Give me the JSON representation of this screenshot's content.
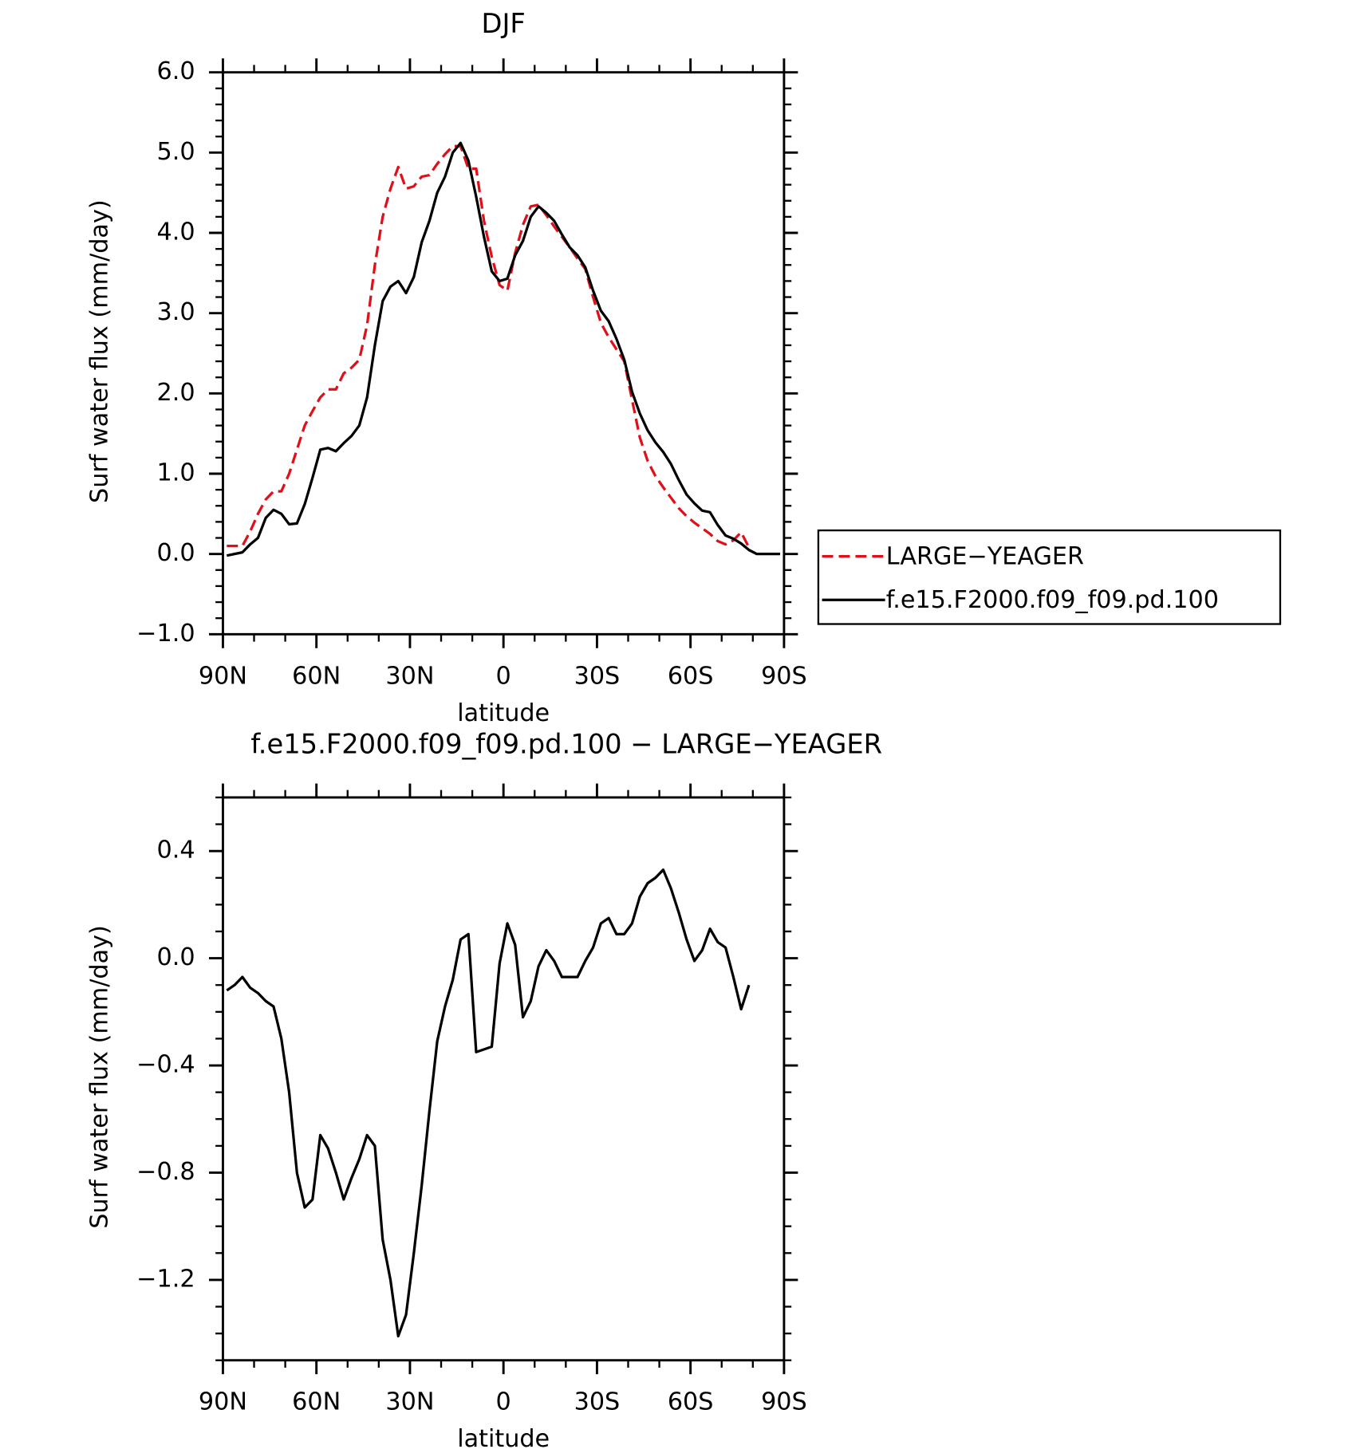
{
  "chart_data": [
    {
      "type": "line",
      "title": "DJF",
      "xlabel": "latitude",
      "ylabel": "Surf water flux (mm/day)",
      "x": [
        88.75,
        86.25,
        83.75,
        81.25,
        78.75,
        76.25,
        73.75,
        71.25,
        68.75,
        66.25,
        63.75,
        61.25,
        58.75,
        56.25,
        53.75,
        51.25,
        48.75,
        46.25,
        43.75,
        41.25,
        38.75,
        36.25,
        33.75,
        31.25,
        28.75,
        26.25,
        23.75,
        21.25,
        18.75,
        16.25,
        13.75,
        11.25,
        8.75,
        6.25,
        3.75,
        1.25,
        -1.25,
        -3.75,
        -6.25,
        -8.75,
        -11.25,
        -13.75,
        -16.25,
        -18.75,
        -21.25,
        -23.75,
        -26.25,
        -28.75,
        -31.25,
        -33.75,
        -36.25,
        -38.75,
        -41.25,
        -43.75,
        -46.25,
        -48.75,
        -51.25,
        -53.75,
        -56.25,
        -58.75,
        -61.25,
        -63.75,
        -66.25,
        -68.75,
        -71.25,
        -73.75,
        -76.25,
        -78.75,
        -81.25,
        -83.75,
        -86.25,
        -88.75
      ],
      "series": [
        {
          "name": "LARGE−YEAGER",
          "color": "#e0101a",
          "line_style": "dashed",
          "values": [
            0.1,
            0.1,
            0.1,
            0.28,
            0.5,
            0.68,
            0.78,
            0.78,
            1.0,
            1.3,
            1.6,
            1.78,
            1.95,
            2.05,
            2.05,
            2.25,
            2.32,
            2.42,
            2.85,
            3.6,
            4.2,
            4.55,
            4.82,
            4.55,
            4.58,
            4.7,
            4.72,
            4.86,
            4.98,
            5.08,
            5.08,
            4.8,
            4.8,
            4.15,
            3.7,
            3.35,
            3.28,
            3.75,
            4.1,
            4.33,
            4.35,
            4.22,
            4.08,
            3.95,
            3.82,
            3.68,
            3.55,
            3.2,
            2.88,
            2.7,
            2.55,
            2.4,
            1.92,
            1.45,
            1.16,
            0.97,
            0.83,
            0.7,
            0.57,
            0.47,
            0.39,
            0.32,
            0.25,
            0.16,
            0.12,
            0.17,
            0.27,
            0.08,
            null,
            null,
            null,
            null
          ]
        },
        {
          "name": "f.e15.F2000.f09_f09.pd.100",
          "color": "#000000",
          "line_style": "solid",
          "values": [
            -0.02,
            0.0,
            0.02,
            0.12,
            0.2,
            0.45,
            0.55,
            0.5,
            0.37,
            0.38,
            0.62,
            0.95,
            1.3,
            1.32,
            1.28,
            1.38,
            1.47,
            1.6,
            1.95,
            2.6,
            3.15,
            3.33,
            3.4,
            3.25,
            3.45,
            3.88,
            4.15,
            4.5,
            4.7,
            5.0,
            5.12,
            4.9,
            4.45,
            3.95,
            3.52,
            3.4,
            3.43,
            3.72,
            3.9,
            4.2,
            4.33,
            4.25,
            4.15,
            3.98,
            3.82,
            3.72,
            3.57,
            3.28,
            3.03,
            2.9,
            2.68,
            2.42,
            2.02,
            1.75,
            1.54,
            1.39,
            1.27,
            1.12,
            0.92,
            0.74,
            0.63,
            0.54,
            0.52,
            0.36,
            0.23,
            0.19,
            0.13,
            0.05,
            0.0,
            0.0,
            0.0,
            0.0
          ]
        }
      ],
      "xlim": [
        90,
        -90
      ],
      "xticks": [
        {
          "value": 90,
          "label": "90N"
        },
        {
          "value": 60,
          "label": "60N"
        },
        {
          "value": 30,
          "label": "30N"
        },
        0,
        {
          "value": -30,
          "label": "30S"
        },
        {
          "value": -60,
          "label": "60S"
        },
        {
          "value": -90,
          "label": "90S"
        }
      ],
      "ylim": [
        -1,
        6
      ],
      "yticks": [
        {
          "value": -1,
          "label": "−1.0"
        },
        {
          "value": 0,
          "label": "0.0"
        },
        {
          "value": 1,
          "label": "1.0"
        },
        {
          "value": 2,
          "label": "2.0"
        },
        {
          "value": 3,
          "label": "3.0"
        },
        {
          "value": 4,
          "label": "4.0"
        },
        {
          "value": 5,
          "label": "5.0"
        },
        {
          "value": 6,
          "label": "6.0"
        }
      ],
      "legend": "right"
    },
    {
      "type": "line",
      "title": "f.e15.F2000.f09_f09.pd.100 − LARGE−YEAGER",
      "xlabel": "latitude",
      "ylabel": "Surf water flux (mm/day)",
      "x": [
        88.75,
        86.25,
        83.75,
        81.25,
        78.75,
        76.25,
        73.75,
        71.25,
        68.75,
        66.25,
        63.75,
        61.25,
        58.75,
        56.25,
        53.75,
        51.25,
        48.75,
        46.25,
        43.75,
        41.25,
        38.75,
        36.25,
        33.75,
        31.25,
        28.75,
        26.25,
        23.75,
        21.25,
        18.75,
        16.25,
        13.75,
        11.25,
        8.75,
        6.25,
        3.75,
        1.25,
        -1.25,
        -3.75,
        -6.25,
        -8.75,
        -11.25,
        -13.75,
        -16.25,
        -18.75,
        -21.25,
        -23.75,
        -26.25,
        -28.75,
        -31.25,
        -33.75,
        -36.25,
        -38.75,
        -41.25,
        -43.75,
        -46.25,
        -48.75,
        -51.25,
        -53.75,
        -56.25,
        -58.75,
        -61.25,
        -63.75,
        -66.25,
        -68.75,
        -71.25,
        -73.75,
        -76.25,
        -78.75,
        -81.25,
        -83.75,
        -86.25,
        -88.75
      ],
      "series": [
        {
          "color": "#000000",
          "line_style": "solid",
          "values": [
            -0.12,
            -0.1,
            -0.07,
            -0.11,
            -0.13,
            -0.16,
            -0.18,
            -0.3,
            -0.5,
            -0.8,
            -0.93,
            -0.9,
            -0.66,
            -0.71,
            -0.8,
            -0.9,
            -0.82,
            -0.75,
            -0.66,
            -0.7,
            -1.05,
            -1.2,
            -1.41,
            -1.33,
            -1.1,
            -0.85,
            -0.57,
            -0.31,
            -0.18,
            -0.08,
            0.07,
            0.09,
            -0.35,
            -0.34,
            -0.33,
            -0.02,
            0.13,
            0.05,
            -0.22,
            -0.16,
            -0.03,
            0.03,
            -0.01,
            -0.07,
            -0.07,
            -0.07,
            -0.01,
            0.04,
            0.13,
            0.15,
            0.09,
            0.09,
            0.13,
            0.23,
            0.28,
            0.3,
            0.33,
            0.26,
            0.17,
            0.07,
            -0.01,
            0.03,
            0.11,
            0.06,
            0.04,
            -0.07,
            -0.19,
            -0.1,
            null,
            null,
            null,
            null
          ]
        }
      ],
      "xlim": [
        90,
        -90
      ],
      "xticks": [
        {
          "value": 90,
          "label": "90N"
        },
        {
          "value": 60,
          "label": "60N"
        },
        {
          "value": 30,
          "label": "30N"
        },
        0,
        {
          "value": -30,
          "label": "30S"
        },
        {
          "value": -60,
          "label": "60S"
        },
        {
          "value": -90,
          "label": "90S"
        }
      ],
      "ylim": [
        -1.5,
        0.6
      ],
      "yticks": [
        {
          "value": -1.2,
          "label": "−1.2"
        },
        {
          "value": -0.8,
          "label": "−0.8"
        },
        {
          "value": -0.4,
          "label": "−0.4"
        },
        {
          "value": 0,
          "label": "0.0"
        },
        0.4
      ]
    }
  ]
}
